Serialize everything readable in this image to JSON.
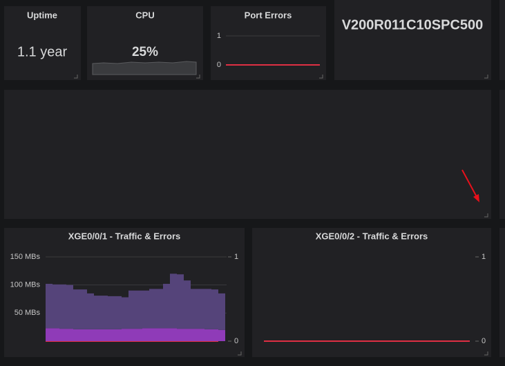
{
  "stat_panels": [
    {
      "title": "Uptime",
      "value": "1.1 year"
    },
    {
      "title": "CPU",
      "value": "25%"
    }
  ],
  "version_panel": {
    "text": "V200R011C10SPC500"
  },
  "chart_data": [
    {
      "type": "line",
      "title": "Port Errors",
      "ylim": [
        0,
        1
      ],
      "yticks": [
        0,
        1
      ],
      "grid": true,
      "series": [
        {
          "color": "#e02f44",
          "values": [
            0,
            0,
            0,
            0,
            0,
            0,
            0,
            0,
            0,
            0,
            0,
            0
          ]
        }
      ]
    },
    {
      "type": "area",
      "stacked": true,
      "title": "XGE0/0/1 - Traffic & Errors",
      "ylim": [
        0,
        150
      ],
      "yticks": [
        {
          "value": 50,
          "label": "50 MBs"
        },
        {
          "value": 100,
          "label": "100 MBs"
        },
        {
          "value": 150,
          "label": "150 MBs"
        }
      ],
      "y2lim": [
        0,
        1
      ],
      "y2ticks": [
        0,
        1
      ],
      "grid": true,
      "series": [
        {
          "color": "#8f3bb8",
          "values": [
            23,
            23,
            22,
            22,
            21,
            21,
            21,
            21,
            21,
            21,
            21,
            22,
            22,
            22,
            23,
            23,
            23,
            23,
            23,
            22,
            22,
            22,
            22,
            21,
            21,
            20
          ]
        },
        {
          "color": "#55447a",
          "values": [
            79,
            78,
            79,
            78,
            71,
            71,
            64,
            60,
            60,
            59,
            59,
            56,
            68,
            68,
            67,
            70,
            70,
            79,
            97,
            97,
            86,
            71,
            71,
            72,
            71,
            65
          ]
        },
        {
          "color": "#e02f44",
          "axis": "y2",
          "values": [
            0,
            0,
            0,
            0,
            0,
            0,
            0,
            0,
            0,
            0,
            0,
            0,
            0,
            0,
            0,
            0,
            0,
            0,
            0,
            0,
            0,
            0,
            0,
            0,
            0,
            0
          ]
        }
      ]
    },
    {
      "type": "line",
      "title": "XGE0/0/2 - Traffic & Errors",
      "y2lim": [
        0,
        1
      ],
      "y2ticks": [
        0,
        1
      ],
      "series": [
        {
          "color": "#e02f44",
          "axis": "y2",
          "values": [
            0,
            0,
            0,
            0,
            0,
            0,
            0,
            0,
            0,
            0,
            0,
            0,
            0,
            0,
            0,
            0,
            0,
            0,
            0,
            0
          ]
        }
      ]
    }
  ]
}
